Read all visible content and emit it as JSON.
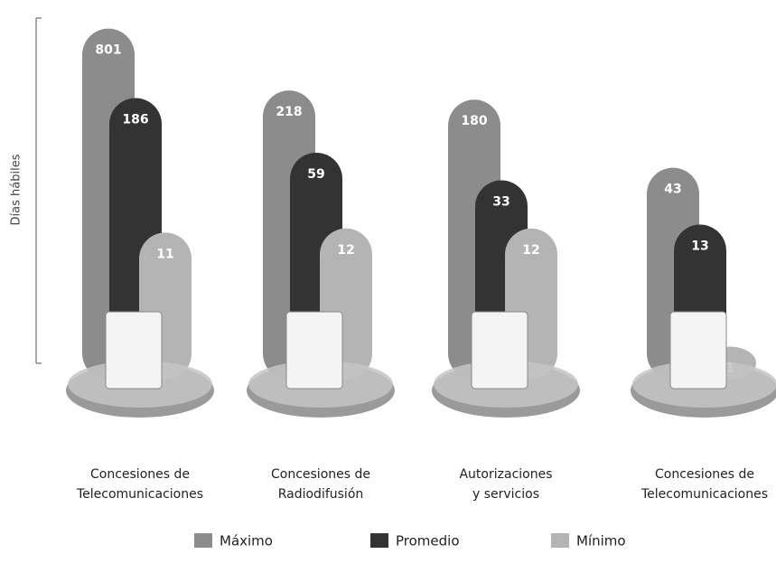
{
  "chart_data": {
    "type": "bar",
    "y_label": "Días hábiles",
    "log_scale": true,
    "ylim": [
      0.5,
      1000
    ],
    "categories": [
      [
        "Concesiones de",
        "Telecomunicaciones"
      ],
      [
        "Concesiones de",
        "Radiodifusión"
      ],
      [
        "Autorizaciones",
        "y servicios"
      ],
      [
        "Concesiones de",
        "Telecomunicaciones"
      ]
    ],
    "series": [
      {
        "name": "Máximo",
        "color": "#8c8c8c",
        "values": [
          801,
          218,
          180,
          43
        ]
      },
      {
        "name": "Promedio",
        "color": "#333333",
        "values": [
          186,
          59,
          33,
          13
        ]
      },
      {
        "name": "Mínimo",
        "color": "#b4b4b4",
        "values": [
          11,
          12,
          12,
          1
        ]
      }
    ]
  }
}
